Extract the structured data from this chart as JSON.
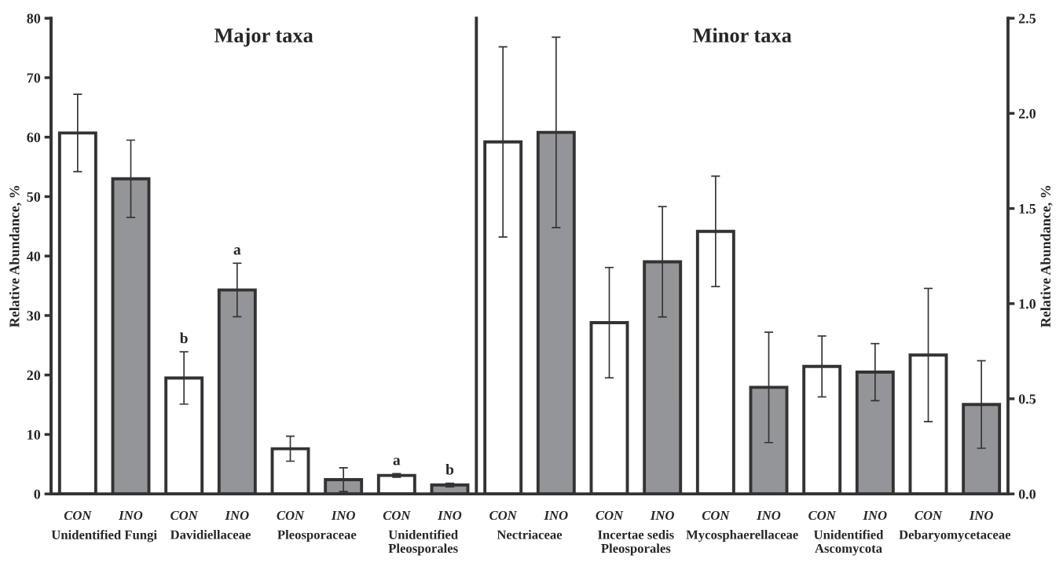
{
  "chart_data": [
    {
      "type": "bar",
      "title": "Major taxa",
      "ylabel": "Relative Abundance, %",
      "categories": [
        "Unidentified Fungi",
        "Davidiellaceae",
        "Pleosporaceae",
        "Unidentified\nPleosporales"
      ],
      "ylim": [
        0,
        80
      ],
      "yticks": [
        0,
        10,
        20,
        30,
        40,
        50,
        60,
        70,
        80
      ],
      "grid": false,
      "legend": false,
      "series": [
        {
          "name": "CON",
          "color": "#ffffff",
          "values": [
            60.7,
            19.5,
            7.6,
            3.1
          ],
          "errors": [
            6.5,
            4.4,
            2.1,
            0.3
          ],
          "value_labels": [
            null,
            "b",
            null,
            "a"
          ]
        },
        {
          "name": "INO",
          "color": "#939598",
          "values": [
            53.0,
            34.3,
            2.4,
            1.5
          ],
          "errors": [
            6.5,
            4.5,
            2.0,
            0.3
          ],
          "value_labels": [
            null,
            "a",
            null,
            "b"
          ]
        }
      ]
    },
    {
      "type": "bar",
      "title": "Minor taxa",
      "ylabel": "Relative Abundance, %",
      "categories": [
        "Nectriaceae",
        "Incertae sedis\nPleosporales",
        "Mycosphaerellaceae",
        "Unidentified\nAscomycota",
        "Debaryomycetaceae"
      ],
      "ylim": [
        0,
        2.5
      ],
      "yticks": [
        {
          "value": 0,
          "label": "0.0"
        },
        {
          "value": 0.5,
          "label": "0.5"
        },
        {
          "value": 1,
          "label": "1.0"
        },
        {
          "value": 1.5,
          "label": "1.5"
        },
        {
          "value": 2,
          "label": "2.0"
        },
        {
          "value": 2.5,
          "label": "2.5"
        }
      ],
      "grid": false,
      "legend": false,
      "series": [
        {
          "name": "CON",
          "color": "#ffffff",
          "values": [
            1.85,
            0.9,
            1.38,
            0.67,
            0.73
          ],
          "errors": [
            0.5,
            0.29,
            0.29,
            0.16,
            0.35
          ]
        },
        {
          "name": "INO",
          "color": "#939598",
          "values": [
            1.9,
            1.22,
            0.56,
            0.64,
            0.47
          ],
          "errors": [
            0.5,
            0.29,
            0.29,
            0.15,
            0.23
          ]
        }
      ]
    }
  ]
}
